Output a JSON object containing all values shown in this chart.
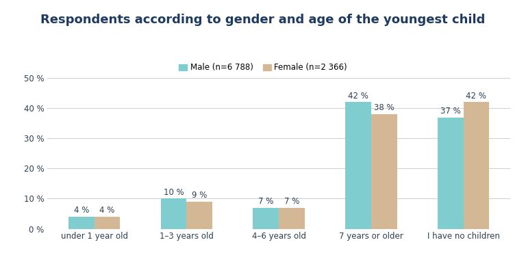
{
  "title": "Respondents according to gender and age of the youngest child",
  "categories": [
    "under 1 year old",
    "1–3 years old",
    "4–6 years old",
    "7 years or older",
    "I have no children"
  ],
  "male_values": [
    4,
    10,
    7,
    42,
    37
  ],
  "female_values": [
    4,
    9,
    7,
    38,
    42
  ],
  "male_label": "Male (n=6 788)",
  "female_label": "Female (n=2 366)",
  "male_color": "#80cdd0",
  "female_color": "#d4b896",
  "bar_width": 0.28,
  "ylim": [
    0,
    50
  ],
  "yticks": [
    0,
    10,
    20,
    30,
    40,
    50
  ],
  "ytick_labels": [
    "0 %",
    "10 %",
    "20 %",
    "30 %",
    "40 %",
    "50 %"
  ],
  "background_color": "#ffffff",
  "title_color": "#1e3a5f",
  "label_color": "#2c3e50",
  "grid_color": "#d0d0d0",
  "title_fontsize": 13,
  "tick_fontsize": 8.5,
  "legend_fontsize": 8.5,
  "annotation_fontsize": 8.5
}
